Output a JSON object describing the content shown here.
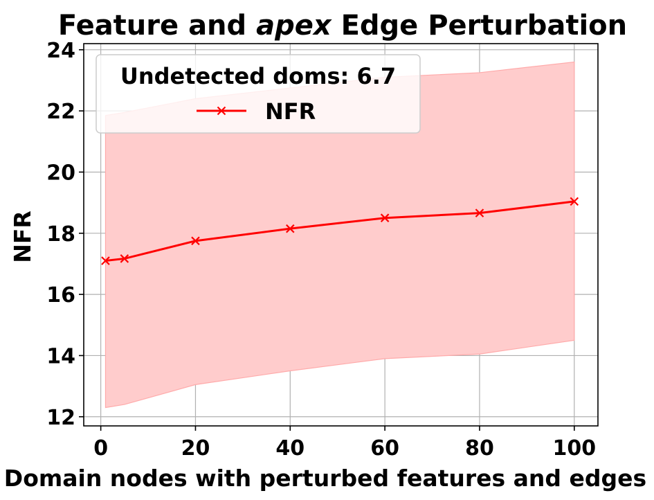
{
  "chart_data": {
    "type": "line",
    "title_parts": [
      "Feature and ",
      "apex",
      " Edge Perturbation"
    ],
    "xlabel": "Domain nodes with perturbed features and edges",
    "ylabel": "NFR",
    "xlim": [
      -3.6,
      105
    ],
    "ylim": [
      11.7,
      24.2
    ],
    "xticks": [
      0,
      20,
      40,
      60,
      80,
      100
    ],
    "yticks": [
      12,
      14,
      16,
      18,
      20,
      22,
      24
    ],
    "grid": true,
    "legend": {
      "title": "Undetected doms: 6.7",
      "placement": "top-left"
    },
    "series": [
      {
        "name": "NFR",
        "color": "#ff0000",
        "band_color": "#ffcccc",
        "x": [
          1,
          5,
          20,
          40,
          60,
          80,
          100
        ],
        "y": [
          17.1,
          17.17,
          17.75,
          18.15,
          18.5,
          18.66,
          19.04
        ],
        "lower": [
          12.3,
          12.4,
          13.05,
          13.5,
          13.9,
          14.05,
          14.5
        ],
        "upper": [
          21.85,
          21.95,
          22.4,
          22.75,
          23.1,
          23.25,
          23.6
        ]
      }
    ]
  }
}
